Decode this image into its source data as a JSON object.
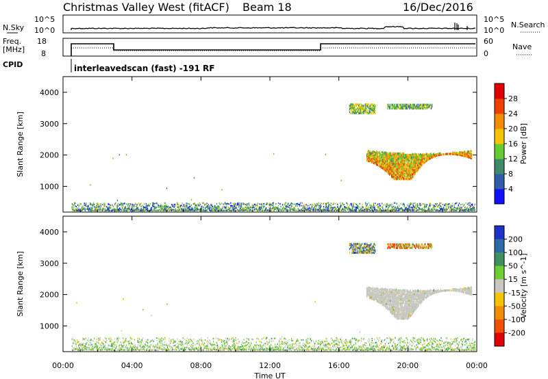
{
  "header": {
    "station": "Christmas Valley West (fitACF)",
    "beam": "Beam 18",
    "date": "16/Dec/2016"
  },
  "strip": {
    "nsky_label": "N.Sky",
    "nsky_ticks": [
      "10^5",
      "10^0"
    ],
    "nsearch_label": "N.Search",
    "nsearch_ticks": [
      "10^5",
      "10^0"
    ],
    "freq_label_1": "Freq.",
    "freq_label_2": "[MHz]",
    "freq_ticks": [
      "18",
      "8"
    ],
    "nave_label": "Nave",
    "nave_ticks": [
      "60",
      "0"
    ],
    "cpid_label": "CPID",
    "cpid_text": "interleavedscan (fast) -191 RF"
  },
  "chart_data": [
    {
      "type": "heatmap",
      "title": "",
      "xlabel": "Time UT",
      "ylabel": "Slant Range [km]",
      "xlim": [
        0,
        24
      ],
      "ylim": [
        180,
        4500
      ],
      "x_ticks": [
        "00:00",
        "04:00",
        "08:00",
        "12:00",
        "16:00",
        "20:00",
        "00:00"
      ],
      "y_ticks": [
        1000,
        2000,
        3000,
        4000
      ],
      "colorbar": {
        "label": "Power [dB]",
        "ticks": [
          4,
          8,
          12,
          16,
          20,
          24,
          28
        ],
        "colors": [
          "#1010ff",
          "#2e5ea8",
          "#3f8a6a",
          "#66cc33",
          "#f5c400",
          "#f08c00",
          "#f04000",
          "#e00000"
        ]
      },
      "regions": [
        {
          "name": "ground scatter band",
          "t_start": 0.5,
          "t_end": 23.9,
          "r_low": 200,
          "r_high": 450,
          "power_db": 10
        },
        {
          "name": "F region echoes",
          "t_start": 17.6,
          "t_end": 23.7,
          "r_low": 1200,
          "r_high": 2100,
          "power_db": 22
        },
        {
          "name": "upper echoes A",
          "t_start": 16.6,
          "t_end": 18.1,
          "r_low": 3300,
          "r_high": 3600,
          "power_db": 14
        },
        {
          "name": "upper echoes B",
          "t_start": 18.8,
          "t_end": 21.4,
          "r_low": 3450,
          "r_high": 3600,
          "power_db": 12
        }
      ]
    },
    {
      "type": "heatmap",
      "title": "",
      "xlabel": "Time UT",
      "ylabel": "Slant Range [km]",
      "xlim": [
        0,
        24
      ],
      "ylim": [
        180,
        4500
      ],
      "x_ticks": [
        "00:00",
        "04:00",
        "08:00",
        "12:00",
        "16:00",
        "20:00",
        "00:00"
      ],
      "y_ticks": [
        1000,
        2000,
        3000,
        4000
      ],
      "colorbar": {
        "label": "Velocity [m s^-1]",
        "ticks": [
          "200",
          "100",
          "50",
          "15",
          "-15",
          "-50",
          "-100",
          "-200"
        ],
        "colors": [
          "#1e32c8",
          "#2e6aa8",
          "#3f8f5f",
          "#6fcc33",
          "#c8c8c0",
          "#f5c400",
          "#f08c00",
          "#f05000",
          "#e00000"
        ]
      },
      "regions": [
        {
          "name": "ground scatter band",
          "t_start": 0.5,
          "t_end": 23.9,
          "r_low": 200,
          "r_high": 600,
          "velocity": 20
        },
        {
          "name": "F region echoes (ground scatter)",
          "t_start": 17.6,
          "t_end": 23.7,
          "r_low": 1200,
          "r_high": 2200,
          "velocity": 0
        },
        {
          "name": "upper echoes A",
          "t_start": 16.6,
          "t_end": 18.1,
          "r_low": 3300,
          "r_high": 3600,
          "velocity": 60
        },
        {
          "name": "upper echoes B",
          "t_start": 18.8,
          "t_end": 21.4,
          "r_low": 3450,
          "r_high": 3600,
          "velocity": -60
        }
      ]
    }
  ]
}
